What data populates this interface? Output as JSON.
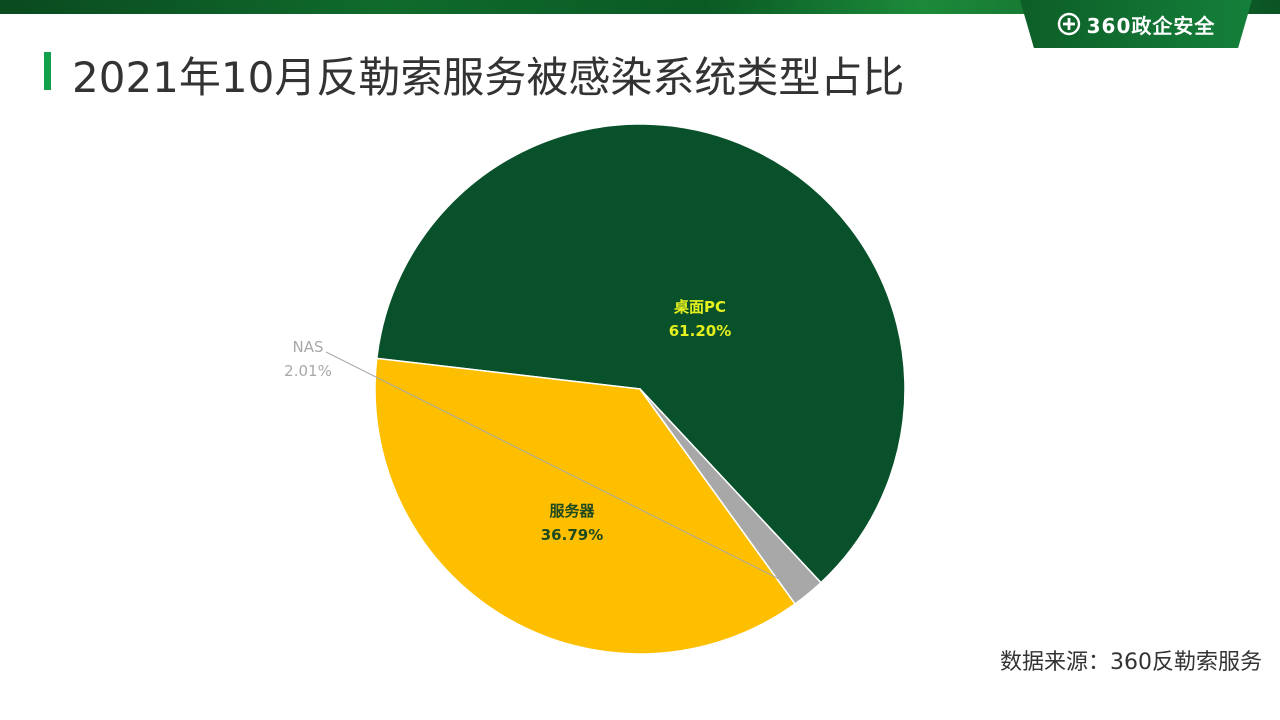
{
  "header": {
    "logo_text": "360政企安全",
    "logo_icon": "plus-circle-icon"
  },
  "title": "2021年10月反勒索服务被感染系统类型占比",
  "source": "数据来源：360反勒索服务",
  "colors": {
    "accent": "#12a04a",
    "band": "#0d5e28"
  },
  "chart_data": {
    "type": "pie",
    "title": "2021年10月反勒索服务被感染系统类型占比",
    "legend": "none",
    "slices": [
      {
        "label": "桌面PC",
        "value": 61.2,
        "display": "61.20%",
        "color": "#08512a",
        "label_color": "#e6f01e"
      },
      {
        "label": "服务器",
        "value": 36.79,
        "display": "36.79%",
        "color": "#fdbf00",
        "label_color": "#1f4a1f"
      },
      {
        "label": "NAS",
        "value": 2.01,
        "display": "2.01%",
        "color": "#a8a8a8",
        "label_color": "#a8a8a8"
      }
    ]
  }
}
